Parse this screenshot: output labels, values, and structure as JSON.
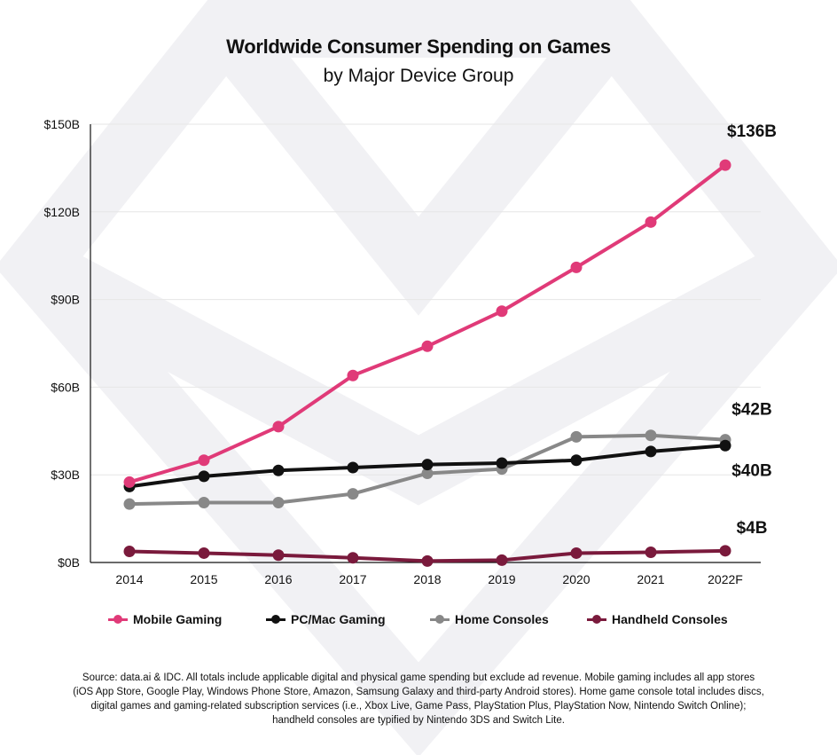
{
  "title": "Worldwide Consumer Spending on Games",
  "subtitle": "by Major Device Group",
  "source_note": "Source: data.ai & IDC. All totals include applicable digital and physical game spending but exclude ad revenue. Mobile gaming includes all app stores (iOS App Store, Google Play, Windows Phone Store, Amazon, Samsung Galaxy and third-party Android stores). Home game console total includes discs, digital games and gaming-related subscription services (i.e., Xbox Live, Game Pass, PlayStation Plus, PlayStation Now, Nintendo Switch Online); handheld consoles are typified by Nintendo 3DS and Switch Lite.",
  "chart_data": {
    "type": "line",
    "title": "Worldwide Consumer Spending on Games",
    "subtitle": "by Major Device Group",
    "xlabel": "",
    "ylabel": "",
    "categories": [
      "2014",
      "2015",
      "2016",
      "2017",
      "2018",
      "2019",
      "2020",
      "2021",
      "2022F"
    ],
    "ylim": [
      0,
      150
    ],
    "yticks": [
      0,
      30,
      60,
      90,
      120,
      150
    ],
    "ytick_labels": [
      "$0B",
      "$30B",
      "$60B",
      "$90B",
      "$120B",
      "$150B"
    ],
    "grid": "horizontal",
    "legend_position": "bottom",
    "series": [
      {
        "name": "Mobile Gaming",
        "color": "#e03a78",
        "values": [
          27.5,
          35,
          46.5,
          64,
          74,
          86,
          101,
          116.5,
          136
        ],
        "end_label": "$136B"
      },
      {
        "name": "PC/Mac Gaming",
        "color": "#111111",
        "values": [
          26,
          29.5,
          31.5,
          32.5,
          33.5,
          34,
          35,
          38,
          40
        ],
        "end_label": "$40B"
      },
      {
        "name": "Home Consoles",
        "color": "#888888",
        "values": [
          20,
          20.5,
          20.5,
          23.5,
          30.5,
          32,
          43,
          43.5,
          42
        ],
        "end_label": "$42B"
      },
      {
        "name": "Handheld Consoles",
        "color": "#7a1a3c",
        "values": [
          3.8,
          3.2,
          2.5,
          1.6,
          0.5,
          0.8,
          3.2,
          3.5,
          4
        ],
        "end_label": "$4B"
      }
    ]
  }
}
